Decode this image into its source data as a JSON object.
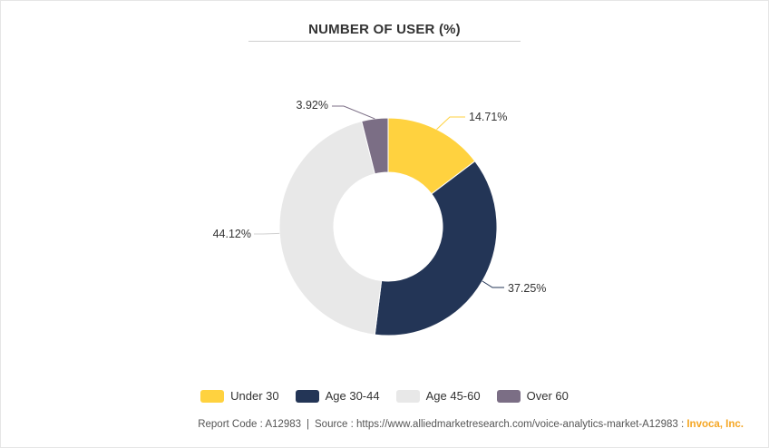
{
  "chart_data": {
    "type": "pie",
    "title": "NUMBER OF USER (%)",
    "categories": [
      "Under 30",
      "Age 30-44",
      "Age 45-60",
      "Over 60"
    ],
    "values": [
      14.71,
      37.25,
      44.12,
      3.92
    ],
    "value_labels": [
      "14.71%",
      "37.25%",
      "44.12%",
      "3.92%"
    ],
    "colors": [
      "#ffd23f",
      "#233556",
      "#e8e8e8",
      "#7b6e85"
    ],
    "donut": true,
    "legend_position": "bottom"
  },
  "footer": {
    "report_code": "Report Code : A12983",
    "source": "Source : https://www.alliedmarketresearch.com/voice-analytics-market-A12983",
    "brand": "Invoca, Inc."
  }
}
